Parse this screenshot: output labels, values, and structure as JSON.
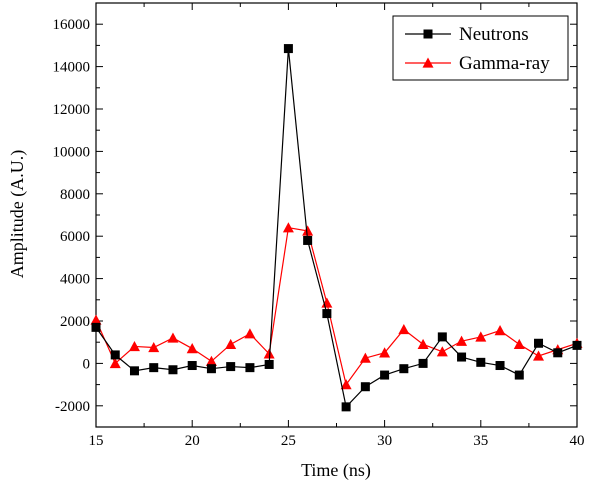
{
  "chart_data": {
    "type": "line",
    "title": "",
    "xlabel": "Time (ns)",
    "ylabel": "Amplitude (A.U.)",
    "xlim": [
      15,
      40
    ],
    "ylim": [
      -3000,
      17000
    ],
    "xticks": [
      15,
      20,
      25,
      30,
      35,
      40
    ],
    "yticks": [
      -2000,
      0,
      2000,
      4000,
      6000,
      8000,
      10000,
      12000,
      14000,
      16000
    ],
    "grid": false,
    "legend_position": "top-right",
    "x": [
      15,
      16,
      17,
      18,
      19,
      20,
      21,
      22,
      23,
      24,
      25,
      26,
      27,
      28,
      29,
      30,
      31,
      32,
      33,
      34,
      35,
      36,
      37,
      38,
      39,
      40
    ],
    "series": [
      {
        "name": "Neutrons",
        "color": "#000000",
        "marker": "square",
        "values": [
          1700,
          400,
          -350,
          -200,
          -300,
          -100,
          -250,
          -150,
          -200,
          -50,
          14850,
          5800,
          2350,
          -2050,
          -1100,
          -550,
          -250,
          0,
          1250,
          300,
          50,
          -100,
          -550,
          950,
          500,
          850
        ]
      },
      {
        "name": "Gamma-ray",
        "color": "#ff0000",
        "marker": "triangle",
        "values": [
          2050,
          0,
          800,
          750,
          1200,
          700,
          100,
          900,
          1400,
          450,
          6400,
          6250,
          2850,
          -1000,
          250,
          500,
          1600,
          900,
          550,
          1050,
          1250,
          1550,
          900,
          350,
          650,
          950
        ]
      }
    ]
  }
}
